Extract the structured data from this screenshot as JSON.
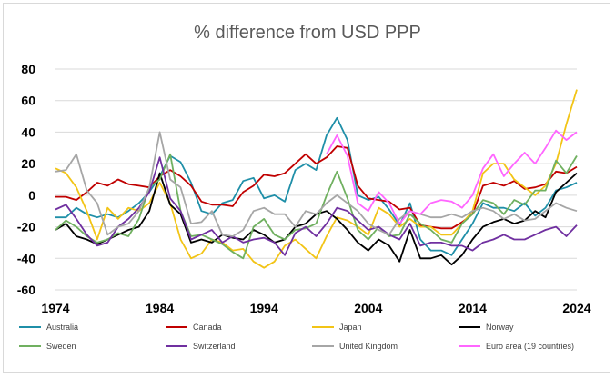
{
  "chart_data": {
    "type": "line",
    "title": "% difference from USD PPP",
    "xlabel": "",
    "ylabel": "",
    "xlim": [
      1974,
      2024
    ],
    "ylim": [
      -60,
      80
    ],
    "yticks": [
      "80",
      "60",
      "40",
      "20",
      "0",
      "-20",
      "-40",
      "-60"
    ],
    "ytick_values": [
      80,
      60,
      40,
      20,
      0,
      -20,
      -40,
      -60
    ],
    "xticks": [
      "1974",
      "1984",
      "1994",
      "2004",
      "2014",
      "2024"
    ],
    "xtick_values": [
      1974,
      1984,
      1994,
      2004,
      2014,
      2024
    ],
    "grid": "horizontal",
    "legend_position": "bottom",
    "x": [
      1974,
      1975,
      1976,
      1977,
      1978,
      1979,
      1980,
      1981,
      1982,
      1983,
      1984,
      1985,
      1986,
      1987,
      1988,
      1989,
      1990,
      1991,
      1992,
      1993,
      1994,
      1995,
      1996,
      1997,
      1998,
      1999,
      2000,
      2001,
      2002,
      2003,
      2004,
      2005,
      2006,
      2007,
      2008,
      2009,
      2010,
      2011,
      2012,
      2013,
      2014,
      2015,
      2016,
      2017,
      2018,
      2019,
      2020,
      2021,
      2022,
      2023,
      2024
    ],
    "series": [
      {
        "name": "Australia",
        "color": "#1f8fa8",
        "values": [
          -14,
          -14,
          -8,
          -12,
          -14,
          -12,
          -14,
          -10,
          -5,
          2,
          12,
          25,
          21,
          8,
          -10,
          -12,
          -5,
          -3,
          9,
          11,
          -2,
          0,
          -4,
          16,
          20,
          16,
          38,
          49,
          35,
          0,
          -3,
          -1,
          -9,
          -19,
          -5,
          -28,
          -35,
          -35,
          -38,
          -28,
          -18,
          -5,
          -8,
          -8,
          -10,
          -5,
          -13,
          -8,
          3,
          5,
          8
        ]
      },
      {
        "name": "Canada",
        "color": "#c00000",
        "values": [
          -1,
          -1,
          -3,
          2,
          8,
          6,
          10,
          7,
          6,
          5,
          12,
          16,
          12,
          6,
          -4,
          -6,
          -6,
          -7,
          2,
          6,
          13,
          12,
          14,
          20,
          26,
          20,
          24,
          31,
          30,
          6,
          -2,
          -3,
          -4,
          -9,
          -8,
          -19,
          -20,
          -21,
          -21,
          -17,
          -12,
          6,
          8,
          6,
          9,
          4,
          5,
          7,
          15,
          14,
          18
        ]
      },
      {
        "name": "Japan",
        "color": "#f2c416",
        "values": [
          17,
          14,
          5,
          -10,
          -28,
          -8,
          -15,
          -8,
          -10,
          -5,
          8,
          -5,
          -28,
          -40,
          -37,
          -28,
          -30,
          -35,
          -34,
          -42,
          -46,
          -42,
          -32,
          -28,
          -34,
          -40,
          -26,
          -14,
          -16,
          -20,
          -25,
          -8,
          -12,
          -20,
          -15,
          -20,
          -20,
          -25,
          -25,
          -18,
          -10,
          14,
          20,
          20,
          10,
          5,
          0,
          6,
          20,
          45,
          67
        ]
      },
      {
        "name": "Norway",
        "color": "#000000",
        "values": [
          -22,
          -18,
          -26,
          -28,
          -31,
          -28,
          -25,
          -22,
          -20,
          -10,
          14,
          -6,
          -12,
          -30,
          -28,
          -30,
          -25,
          -27,
          -28,
          -22,
          -25,
          -30,
          -28,
          -20,
          -18,
          -12,
          -10,
          -15,
          -22,
          -30,
          -35,
          -28,
          -32,
          -42,
          -22,
          -40,
          -40,
          -38,
          -44,
          -38,
          -28,
          -20,
          -17,
          -15,
          -18,
          -16,
          -10,
          -14,
          2,
          8,
          14
        ]
      },
      {
        "name": "Sweden",
        "color": "#70b060",
        "values": [
          -22,
          -16,
          -20,
          -26,
          -30,
          -28,
          -24,
          -26,
          -15,
          5,
          10,
          26,
          -10,
          -26,
          -25,
          -28,
          -31,
          -36,
          -40,
          -20,
          -15,
          -25,
          -28,
          -22,
          -21,
          -18,
          0,
          15,
          -2,
          -22,
          -28,
          -20,
          -26,
          -25,
          -12,
          -18,
          -22,
          -28,
          -30,
          -18,
          -12,
          -3,
          -5,
          -12,
          -3,
          -6,
          3,
          3,
          22,
          14,
          25
        ]
      },
      {
        "name": "Switzerland",
        "color": "#7030a0",
        "values": [
          -9,
          -6,
          -15,
          -25,
          -32,
          -30,
          -20,
          -15,
          -8,
          2,
          24,
          -2,
          -10,
          -28,
          -25,
          -22,
          -30,
          -26,
          -30,
          -28,
          -27,
          -30,
          -38,
          -24,
          -20,
          -26,
          -18,
          -8,
          -10,
          -16,
          -22,
          -20,
          -25,
          -28,
          -18,
          -32,
          -30,
          -30,
          -32,
          -32,
          -35,
          -30,
          -28,
          -25,
          -28,
          -28,
          -25,
          -22,
          -20,
          -26,
          -19
        ]
      },
      {
        "name": "United Kingdom",
        "color": "#a6a6a6",
        "values": [
          15,
          16,
          26,
          3,
          -5,
          -25,
          -20,
          -18,
          -10,
          5,
          40,
          10,
          5,
          -18,
          -17,
          -10,
          -25,
          -26,
          -22,
          -10,
          -8,
          -12,
          -12,
          -20,
          -10,
          -12,
          -5,
          0,
          -5,
          -10,
          -18,
          -22,
          -25,
          -15,
          -10,
          -12,
          -14,
          -14,
          -12,
          -14,
          -10,
          -8,
          -10,
          -15,
          -12,
          -16,
          -15,
          -10,
          -5,
          -8,
          -10
        ]
      },
      {
        "name": "Euro area (19 countries)",
        "color": "#ff66ff",
        "values": [
          null,
          null,
          null,
          null,
          null,
          null,
          null,
          null,
          null,
          null,
          null,
          null,
          null,
          null,
          null,
          null,
          null,
          null,
          null,
          null,
          null,
          null,
          null,
          null,
          null,
          null,
          26,
          38,
          25,
          -5,
          -10,
          2,
          -5,
          -18,
          -10,
          -12,
          -5,
          -3,
          -4,
          -8,
          0,
          17,
          26,
          12,
          20,
          27,
          20,
          30,
          41,
          35,
          40
        ]
      }
    ]
  }
}
